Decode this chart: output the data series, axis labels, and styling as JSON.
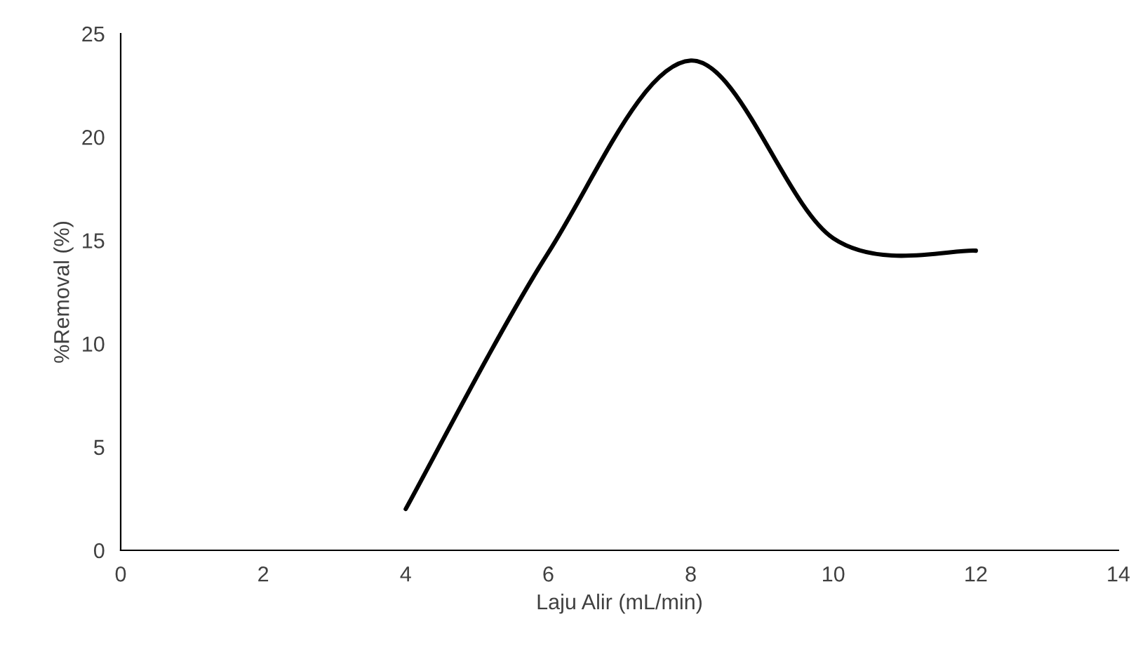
{
  "chart_data": {
    "type": "line",
    "xlabel": "Laju Alir (mL/min)",
    "ylabel": "%Removal (%)",
    "x": [
      4,
      6,
      8,
      10,
      12
    ],
    "series": [
      {
        "color": "#000000",
        "values": [
          2.0,
          14.4,
          23.7,
          15.1,
          14.5
        ]
      }
    ],
    "xlim": [
      0,
      14
    ],
    "xticks": [
      0,
      2,
      4,
      6,
      8,
      10,
      12,
      14
    ],
    "ylim": [
      0,
      25
    ],
    "yticks": [
      0,
      5,
      10,
      15,
      20,
      25
    ],
    "grid": false,
    "legend": false,
    "marker": "none",
    "line_style": "solid"
  }
}
